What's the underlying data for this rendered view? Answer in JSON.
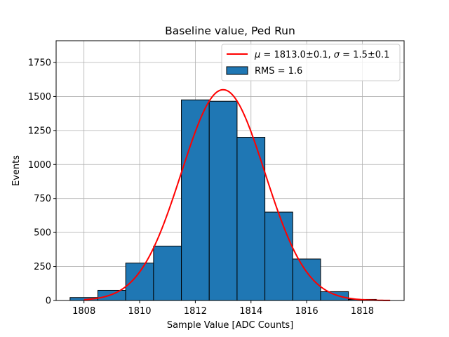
{
  "chart_data": {
    "type": "bar",
    "title": "Baseline value, Ped Run",
    "xlabel": "Sample Value [ADC Counts]",
    "ylabel": "Events",
    "xlim": [
      1807.0,
      1819.5
    ],
    "ylim": [
      0,
      1910
    ],
    "xticks": [
      1808,
      1810,
      1812,
      1814,
      1816,
      1818
    ],
    "xtick_labels": [
      "1808",
      "1810",
      "1812",
      "1814",
      "1816",
      "1818"
    ],
    "yticks": [
      0,
      250,
      500,
      750,
      1000,
      1250,
      1500,
      1750
    ],
    "ytick_labels": [
      "0",
      "250",
      "500",
      "750",
      "1000",
      "1250",
      "1500",
      "1750"
    ],
    "grid": true,
    "bins": [
      {
        "left": 1807.5,
        "right": 1808.5,
        "value": 22
      },
      {
        "left": 1808.5,
        "right": 1809.5,
        "value": 75
      },
      {
        "left": 1809.5,
        "right": 1810.5,
        "value": 275
      },
      {
        "left": 1810.5,
        "right": 1811.5,
        "value": 400
      },
      {
        "left": 1811.5,
        "right": 1812.5,
        "value": 1475
      },
      {
        "left": 1812.5,
        "right": 1813.5,
        "value": 1465
      },
      {
        "left": 1813.5,
        "right": 1814.5,
        "value": 1200
      },
      {
        "left": 1814.5,
        "right": 1815.5,
        "value": 650
      },
      {
        "left": 1815.5,
        "right": 1816.5,
        "value": 305
      },
      {
        "left": 1816.5,
        "right": 1817.5,
        "value": 65
      },
      {
        "left": 1817.5,
        "right": 1818.5,
        "value": 8
      }
    ],
    "fit": {
      "type": "gaussian",
      "mu": 1813.0,
      "sigma": 1.5,
      "amplitude": 1550,
      "x_range": [
        1808.0,
        1819.0
      ]
    },
    "legend": {
      "position": "top-right",
      "entries": [
        {
          "label_parts": [
            {
              "t": "μ",
              "italic": true
            },
            {
              "t": " = 1813.0±0.1, ",
              "italic": false
            },
            {
              "t": "σ",
              "italic": true
            },
            {
              "t": " = 1.5±0.1",
              "italic": false
            }
          ],
          "kind": "line",
          "color": "#ff0000"
        },
        {
          "label_parts": [
            {
              "t": "RMS = 1.6",
              "italic": false
            }
          ],
          "kind": "patch",
          "color": "#1f77b4"
        }
      ]
    },
    "colors": {
      "bar_fill": "#1f77b4",
      "bar_edge": "#000000",
      "fit_line": "#ff0000",
      "grid": "#b0b0b0"
    }
  }
}
